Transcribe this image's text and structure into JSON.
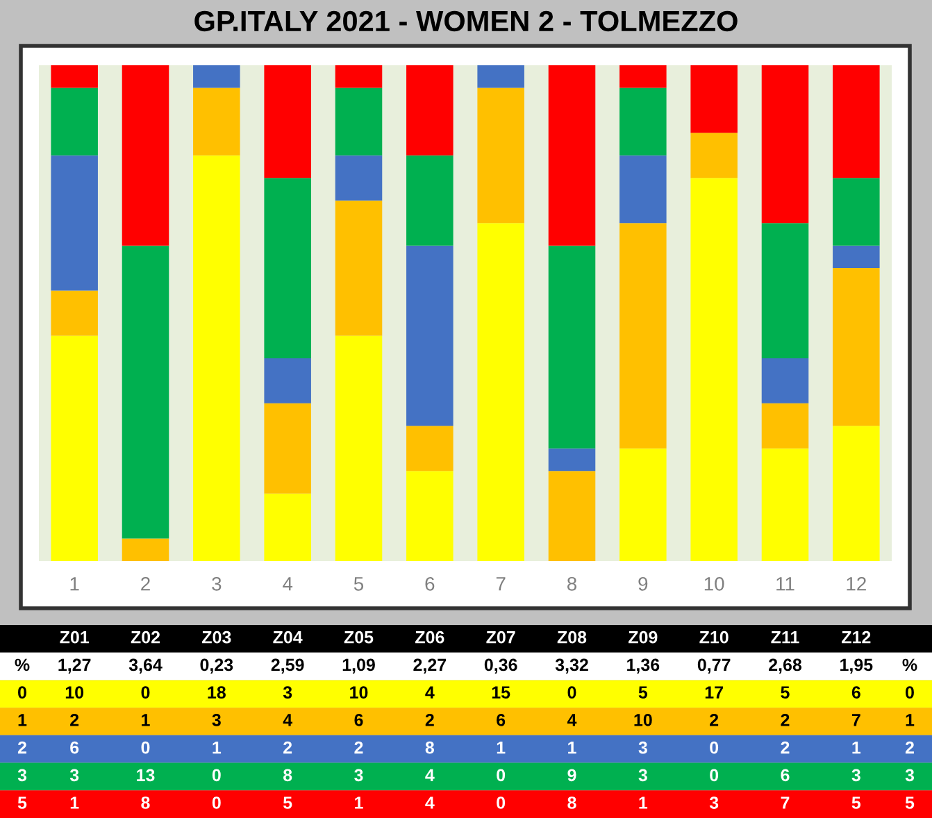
{
  "chart_data": {
    "type": "bar",
    "title": "GP.ITALY 2021 - WOMEN 2 - TOLMEZZO",
    "stacked": true,
    "data_labels": true,
    "legend": false,
    "grid": false,
    "ylim": [
      0,
      22
    ],
    "tick_labels": "x",
    "categories": [
      "1",
      "2",
      "3",
      "4",
      "5",
      "6",
      "7",
      "8",
      "9",
      "10",
      "11",
      "12"
    ],
    "series": [
      {
        "name": "0",
        "color": "#ffff00",
        "values": [
          10,
          0,
          18,
          3,
          10,
          4,
          15,
          0,
          5,
          17,
          5,
          6
        ]
      },
      {
        "name": "1",
        "color": "#ffc000",
        "values": [
          2,
          1,
          3,
          4,
          6,
          2,
          6,
          4,
          10,
          2,
          2,
          7
        ]
      },
      {
        "name": "2",
        "color": "#4472c4",
        "values": [
          6,
          0,
          1,
          2,
          2,
          8,
          1,
          1,
          3,
          0,
          2,
          1
        ]
      },
      {
        "name": "3",
        "color": "#00b050",
        "values": [
          3,
          13,
          0,
          8,
          3,
          4,
          0,
          9,
          3,
          0,
          6,
          3
        ]
      },
      {
        "name": "5",
        "color": "#ff0000",
        "values": [
          1,
          8,
          0,
          5,
          1,
          4,
          0,
          8,
          1,
          3,
          7,
          5
        ]
      }
    ],
    "annotations": [
      "Z01",
      "Z02",
      "Z03",
      "Z04",
      "Z05",
      "Z06",
      "Z07",
      "Z08",
      "Z09",
      "Z10",
      "Z11",
      "Z12",
      "%",
      "1,27",
      "3,64",
      "0,23",
      "2,59",
      "1,09",
      "2,27",
      "0,36",
      "3,32",
      "1,36",
      "0,77",
      "2,68",
      "1,95",
      "%"
    ]
  }
}
